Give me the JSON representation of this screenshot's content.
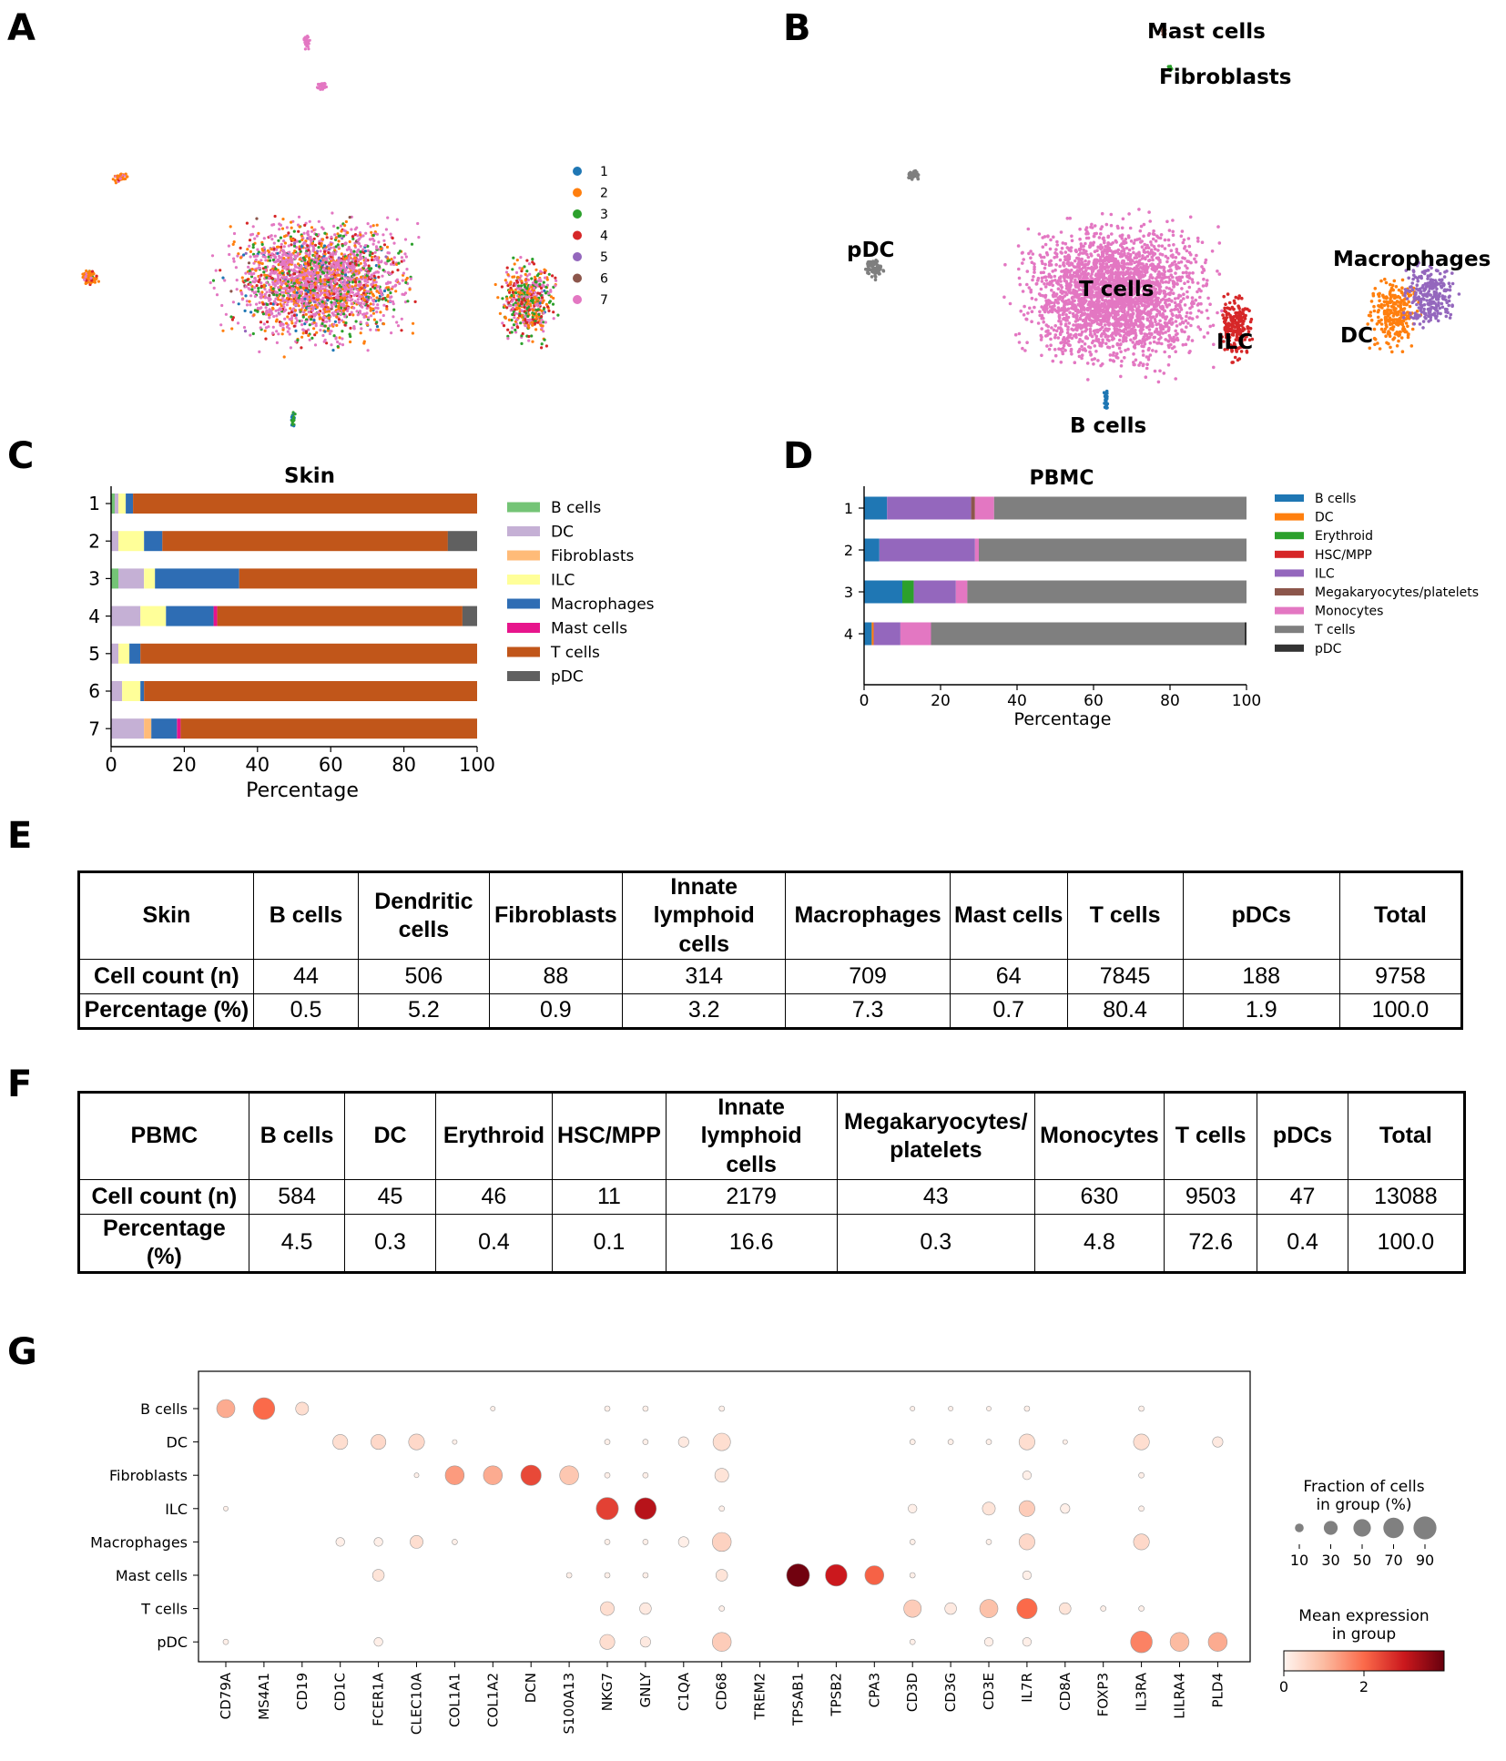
{
  "panel_letters": [
    "A",
    "B",
    "C",
    "D",
    "E",
    "F",
    "G"
  ],
  "panel_a": {
    "legend": [
      "1",
      "2",
      "3",
      "4",
      "5",
      "6",
      "7"
    ],
    "colors": [
      "#1f77b4",
      "#ff7f0e",
      "#2ca02c",
      "#d62728",
      "#9467bd",
      "#8c564b",
      "#e377c2"
    ]
  },
  "panel_b": {
    "labels": [
      "Mast cells",
      "Fibroblasts",
      "pDC",
      "T cells",
      "ILC",
      "Macrophages",
      "DC",
      "B cells"
    ]
  },
  "chart_data": [
    {
      "panel": "C",
      "type": "bar",
      "orientation": "horizontal-stacked",
      "title": "Skin",
      "xlabel": "Percentage",
      "ylabel": "",
      "xlim": [
        0,
        100
      ],
      "xticks": [
        "0",
        "20",
        "40",
        "60",
        "80",
        "100"
      ],
      "categories": [
        "1",
        "2",
        "3",
        "4",
        "5",
        "6",
        "7"
      ],
      "series": [
        {
          "name": "B cells",
          "color": "#74c476",
          "values": [
            1,
            0,
            2,
            0,
            0,
            0,
            0
          ]
        },
        {
          "name": "DC",
          "color": "#c5b0d5",
          "values": [
            1,
            2,
            7,
            8,
            2,
            3,
            9
          ]
        },
        {
          "name": "Fibroblasts",
          "color": "#ffbb78",
          "values": [
            0,
            0,
            0,
            0,
            0,
            0,
            2
          ]
        },
        {
          "name": "ILC",
          "color": "#ffff99",
          "values": [
            2,
            7,
            3,
            7,
            3,
            5,
            0
          ]
        },
        {
          "name": "Macrophages",
          "color": "#2e6db4",
          "values": [
            2,
            5,
            23,
            13,
            3,
            1,
            7
          ]
        },
        {
          "name": "Mast cells",
          "color": "#e7158c",
          "values": [
            0,
            0,
            0,
            1,
            0,
            0,
            1
          ]
        },
        {
          "name": "T cells",
          "color": "#c1561a",
          "values": [
            94,
            78,
            65,
            67,
            92,
            91,
            81
          ]
        },
        {
          "name": "pDC",
          "color": "#606060",
          "values": [
            0,
            8,
            0,
            4,
            0,
            0,
            0
          ]
        }
      ]
    },
    {
      "panel": "D",
      "type": "bar",
      "orientation": "horizontal-stacked",
      "title": "PBMC",
      "xlabel": "Percentage",
      "ylabel": "",
      "xlim": [
        0,
        100
      ],
      "xticks": [
        "0",
        "20",
        "40",
        "60",
        "80",
        "100"
      ],
      "categories": [
        "1",
        "2",
        "3",
        "4"
      ],
      "series": [
        {
          "name": "B cells",
          "color": "#1f77b4",
          "values": [
            6,
            4,
            10,
            2
          ]
        },
        {
          "name": "DC",
          "color": "#ff7f0e",
          "values": [
            0,
            0,
            0,
            0.5
          ]
        },
        {
          "name": "Erythroid",
          "color": "#2ca02c",
          "values": [
            0,
            0,
            3,
            0
          ]
        },
        {
          "name": "HSC/MPP",
          "color": "#d62728",
          "values": [
            0,
            0,
            0,
            0
          ]
        },
        {
          "name": "ILC",
          "color": "#9467bd",
          "values": [
            22,
            25,
            11,
            7
          ]
        },
        {
          "name": "Megakaryocytes/platelets",
          "color": "#8c564b",
          "values": [
            1,
            0,
            0,
            0
          ]
        },
        {
          "name": "Monocytes",
          "color": "#e377c2",
          "values": [
            5,
            1,
            3,
            8
          ]
        },
        {
          "name": "T cells",
          "color": "#7f7f7f",
          "values": [
            66,
            70,
            73,
            82
          ]
        },
        {
          "name": "pDC",
          "color": "#333333",
          "values": [
            0,
            0,
            0,
            0.5
          ]
        }
      ]
    },
    {
      "panel": "G",
      "type": "scatter",
      "subtype": "dotplot",
      "genes": [
        "CD79A",
        "MS4A1",
        "CD19",
        "CD1C",
        "FCER1A",
        "CLEC10A",
        "COL1A1",
        "COL1A2",
        "DCN",
        "S100A13",
        "NKG7",
        "GNLY",
        "C1QA",
        "CD68",
        "TREM2",
        "TPSAB1",
        "TPSB2",
        "CPA3",
        "CD3D",
        "CD3G",
        "CD3E",
        "IL7R",
        "CD8A",
        "FOXP3",
        "IL3RA",
        "LILRA4",
        "PLD4"
      ],
      "groups": [
        "B cells",
        "DC",
        "Fibroblasts",
        "ILC",
        "Macrophages",
        "Mast cells",
        "T cells",
        "pDC"
      ],
      "points": [
        {
          "g": 0,
          "x": 0,
          "f": 55,
          "e": 1.2
        },
        {
          "g": 0,
          "x": 1,
          "f": 80,
          "e": 2.0
        },
        {
          "g": 0,
          "x": 2,
          "f": 25,
          "e": 0.4
        },
        {
          "g": 0,
          "x": 7,
          "f": 2,
          "e": 0.1
        },
        {
          "g": 0,
          "x": 10,
          "f": 3,
          "e": 0.1
        },
        {
          "g": 0,
          "x": 11,
          "f": 3,
          "e": 0.1
        },
        {
          "g": 0,
          "x": 13,
          "f": 3,
          "e": 0.1
        },
        {
          "g": 0,
          "x": 18,
          "f": 2,
          "e": 0.1
        },
        {
          "g": 0,
          "x": 19,
          "f": 2,
          "e": 0.1
        },
        {
          "g": 0,
          "x": 20,
          "f": 2,
          "e": 0.1
        },
        {
          "g": 0,
          "x": 21,
          "f": 3,
          "e": 0.1
        },
        {
          "g": 0,
          "x": 24,
          "f": 3,
          "e": 0.1
        },
        {
          "g": 1,
          "x": 3,
          "f": 35,
          "e": 0.4
        },
        {
          "g": 1,
          "x": 4,
          "f": 35,
          "e": 0.5
        },
        {
          "g": 1,
          "x": 5,
          "f": 40,
          "e": 0.5
        },
        {
          "g": 1,
          "x": 6,
          "f": 2,
          "e": 0.1
        },
        {
          "g": 1,
          "x": 10,
          "f": 3,
          "e": 0.1
        },
        {
          "g": 1,
          "x": 11,
          "f": 3,
          "e": 0.1
        },
        {
          "g": 1,
          "x": 12,
          "f": 15,
          "e": 0.2
        },
        {
          "g": 1,
          "x": 13,
          "f": 50,
          "e": 0.4
        },
        {
          "g": 1,
          "x": 18,
          "f": 3,
          "e": 0.1
        },
        {
          "g": 1,
          "x": 19,
          "f": 3,
          "e": 0.1
        },
        {
          "g": 1,
          "x": 20,
          "f": 3,
          "e": 0.1
        },
        {
          "g": 1,
          "x": 21,
          "f": 40,
          "e": 0.4
        },
        {
          "g": 1,
          "x": 22,
          "f": 2,
          "e": 0.1
        },
        {
          "g": 1,
          "x": 24,
          "f": 40,
          "e": 0.4
        },
        {
          "g": 1,
          "x": 26,
          "f": 15,
          "e": 0.2
        },
        {
          "g": 2,
          "x": 5,
          "f": 2,
          "e": 0.1
        },
        {
          "g": 2,
          "x": 6,
          "f": 60,
          "e": 1.4
        },
        {
          "g": 2,
          "x": 7,
          "f": 60,
          "e": 1.2
        },
        {
          "g": 2,
          "x": 8,
          "f": 70,
          "e": 2.4
        },
        {
          "g": 2,
          "x": 9,
          "f": 60,
          "e": 0.8
        },
        {
          "g": 2,
          "x": 10,
          "f": 3,
          "e": 0.1
        },
        {
          "g": 2,
          "x": 11,
          "f": 3,
          "e": 0.1
        },
        {
          "g": 2,
          "x": 13,
          "f": 30,
          "e": 0.3
        },
        {
          "g": 2,
          "x": 21,
          "f": 10,
          "e": 0.1
        },
        {
          "g": 2,
          "x": 24,
          "f": 3,
          "e": 0.1
        },
        {
          "g": 3,
          "x": 0,
          "f": 2,
          "e": 0.1
        },
        {
          "g": 3,
          "x": 10,
          "f": 85,
          "e": 2.5
        },
        {
          "g": 3,
          "x": 11,
          "f": 80,
          "e": 3.2
        },
        {
          "g": 3,
          "x": 13,
          "f": 3,
          "e": 0.1
        },
        {
          "g": 3,
          "x": 18,
          "f": 10,
          "e": 0.1
        },
        {
          "g": 3,
          "x": 20,
          "f": 25,
          "e": 0.3
        },
        {
          "g": 3,
          "x": 21,
          "f": 40,
          "e": 0.7
        },
        {
          "g": 3,
          "x": 22,
          "f": 12,
          "e": 0.1
        },
        {
          "g": 3,
          "x": 24,
          "f": 3,
          "e": 0.1
        },
        {
          "g": 4,
          "x": 3,
          "f": 10,
          "e": 0.1
        },
        {
          "g": 4,
          "x": 4,
          "f": 10,
          "e": 0.1
        },
        {
          "g": 4,
          "x": 5,
          "f": 25,
          "e": 0.4
        },
        {
          "g": 4,
          "x": 6,
          "f": 3,
          "e": 0.1
        },
        {
          "g": 4,
          "x": 10,
          "f": 3,
          "e": 0.1
        },
        {
          "g": 4,
          "x": 11,
          "f": 3,
          "e": 0.1
        },
        {
          "g": 4,
          "x": 12,
          "f": 15,
          "e": 0.1
        },
        {
          "g": 4,
          "x": 13,
          "f": 60,
          "e": 0.6
        },
        {
          "g": 4,
          "x": 18,
          "f": 3,
          "e": 0.1
        },
        {
          "g": 4,
          "x": 20,
          "f": 3,
          "e": 0.1
        },
        {
          "g": 4,
          "x": 21,
          "f": 40,
          "e": 0.5
        },
        {
          "g": 4,
          "x": 24,
          "f": 40,
          "e": 0.5
        },
        {
          "g": 5,
          "x": 4,
          "f": 20,
          "e": 0.3
        },
        {
          "g": 5,
          "x": 9,
          "f": 3,
          "e": 0.1
        },
        {
          "g": 5,
          "x": 10,
          "f": 3,
          "e": 0.1
        },
        {
          "g": 5,
          "x": 11,
          "f": 3,
          "e": 0.1
        },
        {
          "g": 5,
          "x": 13,
          "f": 20,
          "e": 0.3
        },
        {
          "g": 5,
          "x": 15,
          "f": 90,
          "e": 3.9
        },
        {
          "g": 5,
          "x": 16,
          "f": 80,
          "e": 3.0
        },
        {
          "g": 5,
          "x": 17,
          "f": 60,
          "e": 2.1
        },
        {
          "g": 5,
          "x": 18,
          "f": 3,
          "e": 0.1
        },
        {
          "g": 5,
          "x": 21,
          "f": 10,
          "e": 0.1
        },
        {
          "g": 6,
          "x": 10,
          "f": 30,
          "e": 0.4
        },
        {
          "g": 6,
          "x": 11,
          "f": 20,
          "e": 0.2
        },
        {
          "g": 6,
          "x": 13,
          "f": 3,
          "e": 0.1
        },
        {
          "g": 6,
          "x": 18,
          "f": 50,
          "e": 0.7
        },
        {
          "g": 6,
          "x": 19,
          "f": 20,
          "e": 0.2
        },
        {
          "g": 6,
          "x": 20,
          "f": 55,
          "e": 0.9
        },
        {
          "g": 6,
          "x": 21,
          "f": 70,
          "e": 2.0
        },
        {
          "g": 6,
          "x": 22,
          "f": 20,
          "e": 0.3
        },
        {
          "g": 6,
          "x": 23,
          "f": 3,
          "e": 0.1
        },
        {
          "g": 6,
          "x": 24,
          "f": 3,
          "e": 0.1
        },
        {
          "g": 7,
          "x": 0,
          "f": 3,
          "e": 0.1
        },
        {
          "g": 7,
          "x": 4,
          "f": 10,
          "e": 0.1
        },
        {
          "g": 7,
          "x": 10,
          "f": 35,
          "e": 0.4
        },
        {
          "g": 7,
          "x": 11,
          "f": 15,
          "e": 0.2
        },
        {
          "g": 7,
          "x": 13,
          "f": 60,
          "e": 0.7
        },
        {
          "g": 7,
          "x": 18,
          "f": 3,
          "e": 0.1
        },
        {
          "g": 7,
          "x": 20,
          "f": 10,
          "e": 0.1
        },
        {
          "g": 7,
          "x": 21,
          "f": 10,
          "e": 0.1
        },
        {
          "g": 7,
          "x": 24,
          "f": 80,
          "e": 1.7
        },
        {
          "g": 7,
          "x": 25,
          "f": 60,
          "e": 1.0
        },
        {
          "g": 7,
          "x": 26,
          "f": 60,
          "e": 1.2
        }
      ],
      "legend_fraction": {
        "title_line1": "Fraction of cells",
        "title_line2": "in group (%)",
        "values": [
          10,
          30,
          50,
          70,
          90
        ],
        "labels": [
          "10",
          "30",
          "50",
          "70",
          "90"
        ]
      },
      "legend_expression": {
        "title_line1": "Mean expression",
        "title_line2": "in group",
        "ticks": [
          "0",
          "2"
        ],
        "range": [
          0,
          4
        ]
      }
    }
  ],
  "table_e": {
    "headers": [
      "Skin",
      "B cells",
      "Dendritic cells",
      "Fibroblasts",
      "Innate lymphoid cells",
      "Macrophages",
      "Mast cells",
      "T cells",
      "pDCs",
      "Total"
    ],
    "header_lines": [
      [
        "Skin"
      ],
      [
        "B cells"
      ],
      [
        "Dendritic",
        "cells"
      ],
      [
        "Fibroblasts"
      ],
      [
        "Innate",
        "lymphoid cells"
      ],
      [
        "Macrophages"
      ],
      [
        "Mast cells"
      ],
      [
        "T cells"
      ],
      [
        "pDCs"
      ],
      [
        "Total"
      ]
    ],
    "rows": [
      {
        "label": "Cell count (n)",
        "values": [
          "44",
          "506",
          "88",
          "314",
          "709",
          "64",
          "7845",
          "188",
          "9758"
        ]
      },
      {
        "label": "Percentage (%)",
        "values": [
          "0.5",
          "5.2",
          "0.9",
          "3.2",
          "7.3",
          "0.7",
          "80.4",
          "1.9",
          "100.0"
        ]
      }
    ]
  },
  "table_f": {
    "headers": [
      "PBMC",
      "B cells",
      "DC",
      "Erythroid",
      "HSC/MPP",
      "Innate lymphoid cells",
      "Megakaryocytes/ platelets",
      "Monocytes",
      "T cells",
      "pDCs",
      "Total"
    ],
    "header_lines": [
      [
        "PBMC"
      ],
      [
        "B cells"
      ],
      [
        "DC"
      ],
      [
        "Erythroid"
      ],
      [
        "HSC/MPP"
      ],
      [
        "Innate lymphoid",
        "cells"
      ],
      [
        "Megakaryocytes/",
        "platelets"
      ],
      [
        "Monocytes"
      ],
      [
        "T cells"
      ],
      [
        "pDCs"
      ],
      [
        "Total"
      ]
    ],
    "rows": [
      {
        "label": "Cell count (n)",
        "values": [
          "584",
          "45",
          "46",
          "11",
          "2179",
          "43",
          "630",
          "9503",
          "47",
          "13088"
        ]
      },
      {
        "label": "Percentage (%)",
        "values": [
          "4.5",
          "0.3",
          "0.4",
          "0.1",
          "16.6",
          "0.3",
          "4.8",
          "72.6",
          "0.4",
          "100.0"
        ]
      }
    ]
  }
}
